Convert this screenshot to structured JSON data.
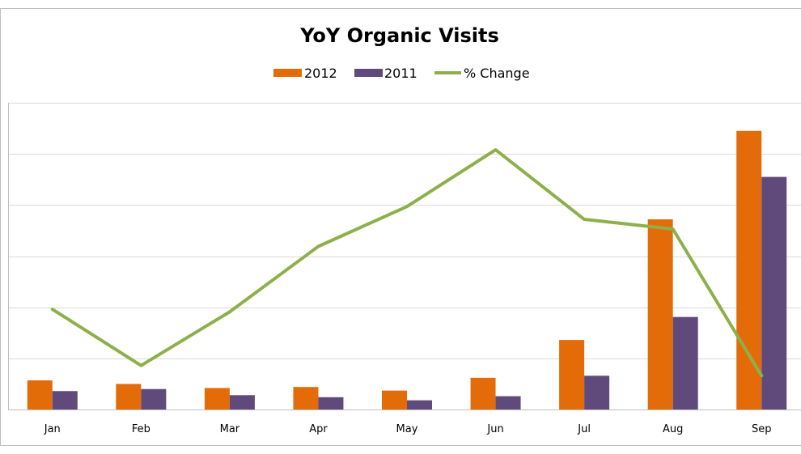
{
  "chart_data": {
    "type": "bar",
    "title": "YoY Organic Visits",
    "categories": [
      "Jan",
      "Feb",
      "Mar",
      "Apr",
      "May",
      "Jun",
      "Jul",
      "Aug",
      "Sep"
    ],
    "bar_scale": [
      0,
      6
    ],
    "line_scale": [
      0,
      6
    ],
    "grid": true,
    "legend_position": "top",
    "y_axis_labels": "hidden",
    "series": [
      {
        "name": "2012",
        "type": "bar",
        "color": "#e36c09",
        "values": [
          0.57,
          0.5,
          0.42,
          0.44,
          0.37,
          0.62,
          1.36,
          3.72,
          5.45
        ]
      },
      {
        "name": "2011",
        "type": "bar",
        "color": "#604a7b",
        "values": [
          0.36,
          0.4,
          0.28,
          0.24,
          0.18,
          0.26,
          0.66,
          1.81,
          4.55
        ]
      },
      {
        "name": "% Change",
        "type": "line",
        "color": "#8db04a",
        "values": [
          1.96,
          0.86,
          1.91,
          3.19,
          3.97,
          5.08,
          3.72,
          3.53,
          0.66
        ]
      }
    ]
  }
}
